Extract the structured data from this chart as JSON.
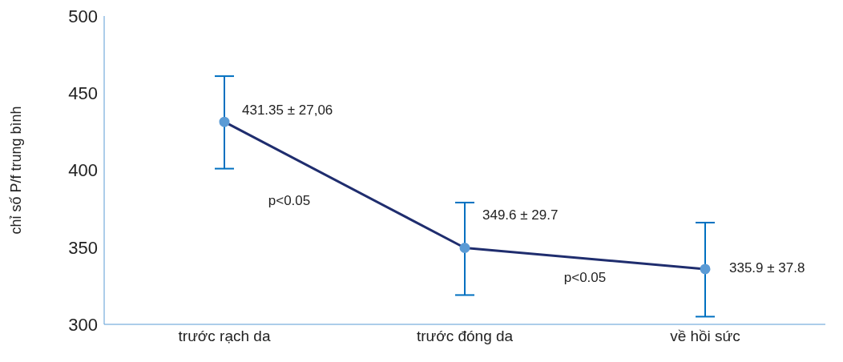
{
  "chart_data": {
    "type": "line",
    "ylabel": "chỉ số P/f trung bình",
    "categories": [
      "trước rạch da",
      "trước đóng da",
      "về hồi sức"
    ],
    "series": [
      {
        "color": "#1f2d6e",
        "values": [
          431.35,
          349.6,
          335.9
        ],
        "errors": [
          [
            401,
            461
          ],
          [
            319,
            379
          ],
          [
            305,
            366
          ]
        ],
        "value_labels": [
          "431.35 ± 27,06",
          "349.6 ± 29.7",
          "335.9 ± 37.8"
        ]
      }
    ],
    "ylim": [
      300,
      500
    ],
    "yticks": [
      300,
      350,
      400,
      450,
      500
    ],
    "marker": "circle",
    "line_style": "solid",
    "grid": false,
    "annotations": [
      "p<0.05",
      "p<0.05"
    ]
  }
}
